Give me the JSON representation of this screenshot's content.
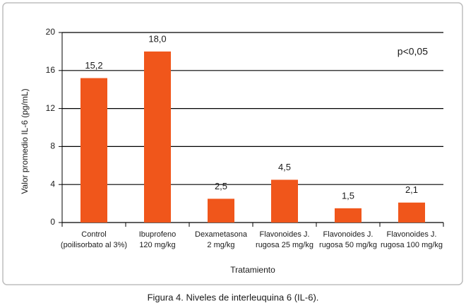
{
  "chart_data": {
    "type": "bar",
    "y_label": "Valor promedio IL-6 (pg/mL)",
    "x_label": "Tratamiento",
    "annotation": "p<0,05",
    "caption": "Figura 4. Niveles de interleuquina 6 (IL-6).",
    "categories": [
      [
        "Control",
        "(poilisorbato al 3%)"
      ],
      [
        "Ibuprofeno",
        "120 mg/kg"
      ],
      [
        "Dexametasona",
        "2 mg/kg"
      ],
      [
        "Flavonoides J.",
        "rugosa 25 mg/kg"
      ],
      [
        "Flavonoides J.",
        "rugosa 50 mg/kg"
      ],
      [
        "Flavonoides J.",
        "rugosa 100 mg/kg"
      ]
    ],
    "values": [
      15.2,
      18.0,
      2.5,
      4.5,
      1.5,
      2.1
    ],
    "value_labels": [
      "15,2",
      "18,0",
      "2,5",
      "4,5",
      "1,5",
      "2,1"
    ],
    "color": "#f0561b",
    "ylim": [
      0,
      20
    ],
    "yticks": [
      0,
      4,
      8,
      12,
      16,
      20
    ],
    "grid": true
  }
}
